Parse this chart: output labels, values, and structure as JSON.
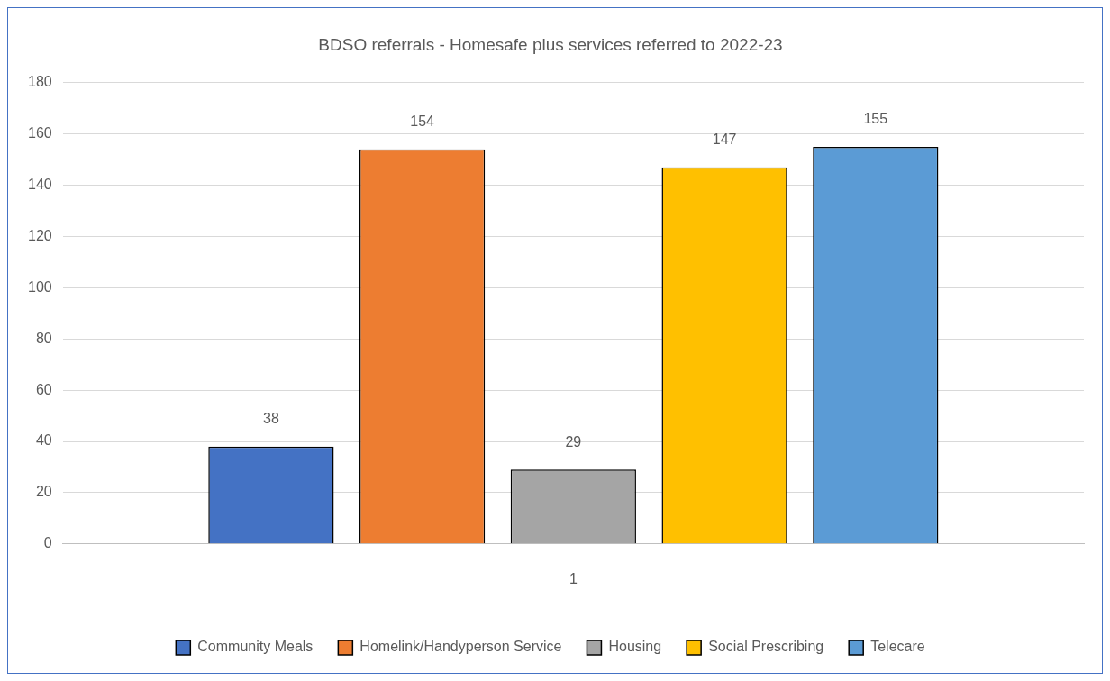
{
  "chart_data": {
    "type": "bar",
    "title": "BDSO referrals - Homesafe plus services referred to 2022-23",
    "categories": [
      "1"
    ],
    "series": [
      {
        "name": "Community Meals",
        "color": "#4472c4",
        "values": [
          38
        ]
      },
      {
        "name": "Homelink/Handyperson Service",
        "color": "#ed7d31",
        "values": [
          154
        ]
      },
      {
        "name": "Housing",
        "color": "#a5a5a5",
        "values": [
          29
        ]
      },
      {
        "name": "Social Prescribing",
        "color": "#ffc000",
        "values": [
          147
        ]
      },
      {
        "name": "Telecare",
        "color": "#5b9bd5",
        "values": [
          155
        ]
      }
    ],
    "ylim": [
      0,
      180
    ],
    "yticks": [
      0,
      20,
      40,
      60,
      80,
      100,
      120,
      140,
      160,
      180
    ],
    "grid": "y",
    "legend": "bottom",
    "data_labels": true
  }
}
